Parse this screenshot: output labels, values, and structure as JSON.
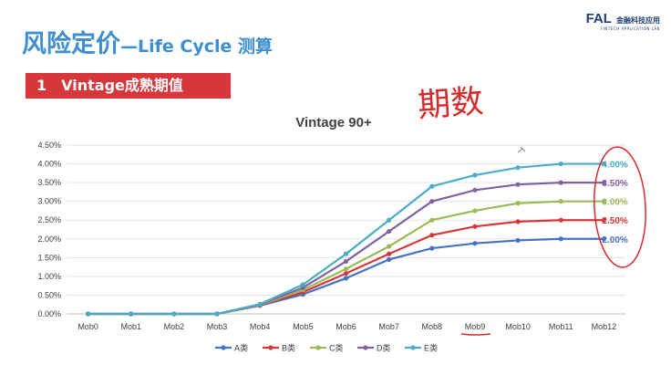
{
  "slide": {
    "title_main": "风险定价",
    "title_sub": "—Life Cycle 测算",
    "logo_brand": "FAL",
    "logo_cn": "金融科技应用",
    "logo_en": "FINTECH APPLICATION LAB",
    "section_number": "1",
    "section_title": "Vintage成熟期值",
    "handwriting": "期数"
  },
  "colors": {
    "A": "#4472c4",
    "B": "#d6373a",
    "C": "#9bbb59",
    "D": "#8064a2",
    "E": "#4bacc6",
    "annotation": "#d62a2a",
    "banner": "#d6373a",
    "title": "#3f8fd0"
  },
  "chart_data": {
    "type": "line",
    "title": "Vintage 90+",
    "categories": [
      "Mob0",
      "Mob1",
      "Mob2",
      "Mob3",
      "Mob4",
      "Mob5",
      "Mob6",
      "Mob7",
      "Mob8",
      "Mob9",
      "Mob10",
      "Mob11",
      "Mob12"
    ],
    "ylim": [
      0,
      4.5
    ],
    "yticks": [
      "0.00%",
      "0.50%",
      "1.00%",
      "1.50%",
      "2.00%",
      "2.50%",
      "3.00%",
      "3.50%",
      "4.00%",
      "4.50%"
    ],
    "legend_position": "bottom",
    "grid": true,
    "series": [
      {
        "name": "A类",
        "key": "A",
        "values": [
          0,
          0,
          0,
          0,
          0.22,
          0.52,
          0.95,
          1.45,
          1.75,
          1.88,
          1.96,
          2.0,
          2.0
        ],
        "end_label": "2.00%"
      },
      {
        "name": "B类",
        "key": "B",
        "values": [
          0,
          0,
          0,
          0,
          0.23,
          0.58,
          1.08,
          1.6,
          2.1,
          2.33,
          2.46,
          2.5,
          2.5
        ],
        "end_label": "2.50%"
      },
      {
        "name": "C类",
        "key": "C",
        "values": [
          0,
          0,
          0,
          0,
          0.24,
          0.64,
          1.2,
          1.8,
          2.5,
          2.75,
          2.95,
          3.0,
          3.0
        ],
        "end_label": "3.00%"
      },
      {
        "name": "D类",
        "key": "D",
        "values": [
          0,
          0,
          0,
          0,
          0.25,
          0.7,
          1.4,
          2.2,
          3.0,
          3.3,
          3.45,
          3.5,
          3.5
        ],
        "end_label": "3.50%"
      },
      {
        "name": "E类",
        "key": "E",
        "values": [
          0,
          0,
          0,
          0,
          0.26,
          0.78,
          1.6,
          2.5,
          3.4,
          3.7,
          3.9,
          4.0,
          4.0
        ],
        "end_label": "4.00%"
      }
    ],
    "annotations": {
      "underlined_category": "Mob9",
      "circled_category": "Mob12"
    }
  }
}
